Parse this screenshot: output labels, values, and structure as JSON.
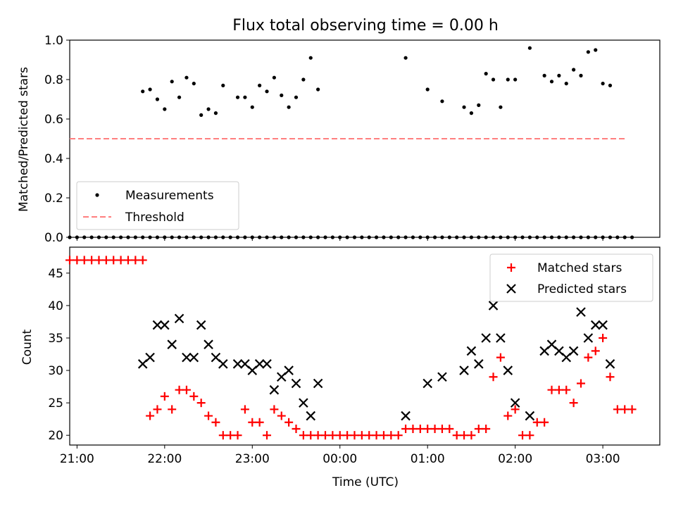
{
  "chart_data": [
    {
      "type": "scatter",
      "title": "Flux total observing time = 0.00 h",
      "xlabel": "",
      "ylabel": "Matched/Predicted stars",
      "xlim": [
        "20:55",
        "03:39"
      ],
      "ylim": [
        0,
        1
      ],
      "yticks": [
        "0.0",
        "0.2",
        "0.4",
        "0.6",
        "0.8",
        "1.0"
      ],
      "legend_position": "lower-left",
      "series": [
        {
          "name": "Measurements",
          "type": "scatter",
          "color": "#000000",
          "x": [
            "20:55",
            "21:00",
            "21:05",
            "21:10",
            "21:15",
            "21:20",
            "21:25",
            "21:30",
            "21:35",
            "21:40",
            "21:45",
            "21:50",
            "21:55",
            "22:00",
            "22:05",
            "22:10",
            "22:15",
            "22:20",
            "22:25",
            "22:30",
            "22:35",
            "22:40",
            "22:45",
            "22:50",
            "22:55",
            "23:00",
            "23:05",
            "23:10",
            "23:15",
            "23:20",
            "23:25",
            "23:30",
            "23:35",
            "23:40",
            "23:45",
            "23:50",
            "23:55",
            "00:00",
            "00:05",
            "00:10",
            "00:15",
            "00:20",
            "00:25",
            "00:30",
            "00:35",
            "00:40",
            "00:45",
            "00:50",
            "00:55",
            "01:00",
            "01:05",
            "01:10",
            "01:15",
            "01:20",
            "01:25",
            "01:30",
            "01:35",
            "01:40",
            "01:45",
            "01:50",
            "01:55",
            "02:00",
            "02:05",
            "02:10",
            "02:15",
            "02:20",
            "02:25",
            "02:30",
            "02:35",
            "02:40",
            "02:45",
            "02:50",
            "02:55",
            "03:00",
            "03:05",
            "03:10",
            "03:15",
            "03:20",
            "21:45",
            "21:50",
            "21:55",
            "22:00",
            "22:05",
            "22:10",
            "22:15",
            "22:20",
            "22:25",
            "22:30",
            "22:35",
            "22:40",
            "22:50",
            "22:55",
            "23:00",
            "23:05",
            "23:10",
            "23:15",
            "23:20",
            "23:25",
            "23:30",
            "23:35",
            "23:40",
            "23:45",
            "00:45",
            "01:00",
            "01:10",
            "01:25",
            "01:30",
            "01:35",
            "01:40",
            "01:45",
            "01:50",
            "01:55",
            "02:00",
            "02:10",
            "02:20",
            "02:25",
            "02:30",
            "02:35",
            "02:40",
            "02:45",
            "02:50",
            "02:55",
            "03:00",
            "03:05"
          ],
          "y": [
            0,
            0,
            0,
            0,
            0,
            0,
            0,
            0,
            0,
            0,
            0,
            0,
            0,
            0,
            0,
            0,
            0,
            0,
            0,
            0,
            0,
            0,
            0,
            0,
            0,
            0,
            0,
            0,
            0,
            0,
            0,
            0,
            0,
            0,
            0,
            0,
            0,
            0,
            0,
            0,
            0,
            0,
            0,
            0,
            0,
            0,
            0,
            0,
            0,
            0,
            0,
            0,
            0,
            0,
            0,
            0,
            0,
            0,
            0,
            0,
            0,
            0,
            0,
            0,
            0,
            0,
            0,
            0,
            0,
            0,
            0,
            0,
            0,
            0,
            0,
            0,
            0,
            0,
            0.74,
            0.75,
            0.7,
            0.65,
            0.79,
            0.71,
            0.81,
            0.78,
            0.62,
            0.65,
            0.63,
            0.77,
            0.71,
            0.71,
            0.66,
            0.77,
            0.74,
            0.81,
            0.72,
            0.66,
            0.71,
            0.8,
            0.91,
            0.75,
            0.91,
            0.75,
            0.69,
            0.66,
            0.63,
            0.67,
            0.83,
            0.8,
            0.66,
            0.8,
            0.8,
            0.96,
            0.82,
            0.79,
            0.82,
            0.78,
            0.85,
            0.82,
            0.94,
            0.95,
            0.78,
            0.77
          ]
        },
        {
          "name": "Threshold",
          "type": "line",
          "style": "dashed",
          "color": "#ff7f7f",
          "x": [
            "20:55",
            "03:15"
          ],
          "y": [
            0.5,
            0.5
          ]
        }
      ]
    },
    {
      "type": "scatter",
      "title": "",
      "xlabel": "Time (UTC)",
      "ylabel": "Count",
      "xlim": [
        "20:55",
        "03:39"
      ],
      "ylim": [
        18.5,
        49
      ],
      "yticks": [
        "20",
        "25",
        "30",
        "35",
        "40",
        "45"
      ],
      "xticks": [
        "21:00",
        "22:00",
        "23:00",
        "00:00",
        "01:00",
        "02:00",
        "03:00"
      ],
      "legend_position": "upper-right",
      "series": [
        {
          "name": "Matched stars",
          "marker": "plus",
          "color": "#ff0000",
          "x": [
            "20:55",
            "21:00",
            "21:05",
            "21:10",
            "21:15",
            "21:20",
            "21:25",
            "21:30",
            "21:35",
            "21:40",
            "21:45",
            "21:50",
            "21:55",
            "22:00",
            "22:05",
            "22:10",
            "22:15",
            "22:20",
            "22:25",
            "22:30",
            "22:35",
            "22:40",
            "22:45",
            "22:50",
            "22:55",
            "23:00",
            "23:05",
            "23:10",
            "23:15",
            "23:20",
            "23:25",
            "23:30",
            "23:35",
            "23:40",
            "23:45",
            "23:50",
            "23:55",
            "00:00",
            "00:05",
            "00:10",
            "00:15",
            "00:20",
            "00:25",
            "00:30",
            "00:35",
            "00:40",
            "00:45",
            "00:50",
            "00:55",
            "01:00",
            "01:05",
            "01:10",
            "01:15",
            "01:20",
            "01:25",
            "01:30",
            "01:35",
            "01:40",
            "01:45",
            "01:50",
            "01:55",
            "02:00",
            "02:05",
            "02:10",
            "02:15",
            "02:20",
            "02:25",
            "02:30",
            "02:35",
            "02:40",
            "02:45",
            "02:50",
            "02:55",
            "03:00",
            "03:05",
            "03:10",
            "03:15",
            "03:20"
          ],
          "y": [
            47,
            47,
            47,
            47,
            47,
            47,
            47,
            47,
            47,
            47,
            47,
            23,
            24,
            26,
            24,
            27,
            27,
            26,
            25,
            23,
            22,
            20,
            20,
            20,
            24,
            22,
            22,
            20,
            24,
            23,
            22,
            21,
            20,
            20,
            20,
            20,
            20,
            20,
            20,
            20,
            20,
            20,
            20,
            20,
            20,
            20,
            21,
            21,
            21,
            21,
            21,
            21,
            21,
            20,
            20,
            20,
            21,
            21,
            29,
            32,
            23,
            24,
            20,
            20,
            22,
            22,
            27,
            27,
            27,
            25,
            28,
            32,
            33,
            35,
            29,
            24,
            24,
            24
          ]
        },
        {
          "name": "Predicted stars",
          "marker": "x",
          "color": "#000000",
          "x": [
            "21:45",
            "21:50",
            "21:55",
            "22:00",
            "22:05",
            "22:10",
            "22:15",
            "22:20",
            "22:25",
            "22:30",
            "22:35",
            "22:40",
            "22:50",
            "22:55",
            "23:00",
            "23:05",
            "23:10",
            "23:15",
            "23:20",
            "23:25",
            "23:30",
            "23:35",
            "23:40",
            "23:45",
            "00:45",
            "01:00",
            "01:10",
            "01:25",
            "01:30",
            "01:35",
            "01:40",
            "01:45",
            "01:50",
            "01:55",
            "02:00",
            "02:10",
            "02:20",
            "02:25",
            "02:30",
            "02:35",
            "02:40",
            "02:45",
            "02:50",
            "02:55",
            "03:00",
            "03:05"
          ],
          "y": [
            31,
            32,
            37,
            37,
            34,
            38,
            32,
            32,
            37,
            34,
            32,
            31,
            31,
            31,
            30,
            31,
            31,
            27,
            29,
            30,
            28,
            25,
            23,
            28,
            23,
            28,
            29,
            30,
            33,
            31,
            35,
            40,
            35,
            30,
            25,
            23,
            33,
            34,
            33,
            32,
            33,
            39,
            35,
            37,
            37,
            31
          ]
        }
      ]
    }
  ]
}
